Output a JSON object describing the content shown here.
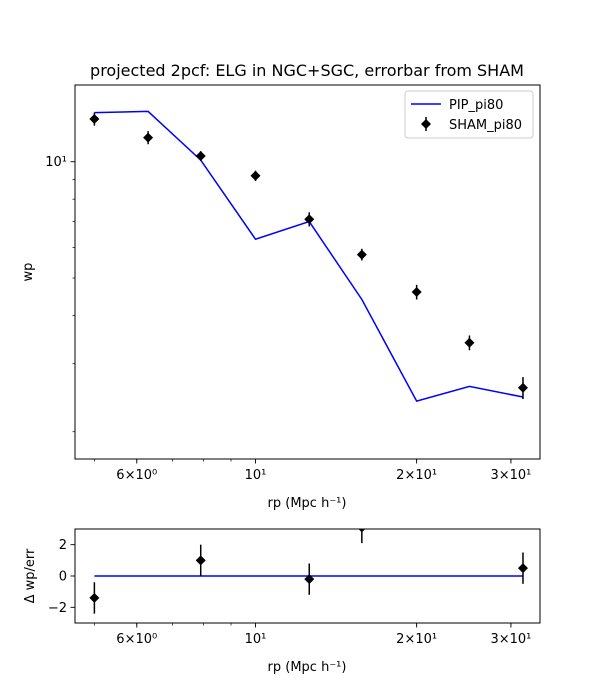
{
  "chart_data": [
    {
      "type": "line",
      "title": "projected 2pcf: ELG in NGC+SGC, errorbar from SHAM",
      "xlabel": "rp (Mpc h⁻¹)",
      "ylabel": "wp",
      "xscale": "log",
      "yscale": "log",
      "xlim": [
        4.6,
        34.0
      ],
      "ylim": [
        1.7,
        15.8
      ],
      "xticks": [
        {
          "value": 6,
          "label": "6×10⁰"
        },
        {
          "value": 10,
          "label": "10¹"
        },
        {
          "value": 20,
          "label": "2×10¹"
        },
        {
          "value": 30,
          "label": "3×10¹"
        }
      ],
      "yticks": [
        {
          "value": 10,
          "label": "10¹"
        }
      ],
      "legend_position": "top-right",
      "series": [
        {
          "name": "PIP_pi80",
          "kind": "line",
          "color": "#0000ff",
          "x": [
            5.0,
            6.3,
            7.9,
            10.0,
            12.6,
            15.8,
            20.0,
            25.1,
            31.6
          ],
          "y": [
            13.4,
            13.5,
            10.1,
            6.3,
            7.0,
            4.4,
            2.4,
            2.62,
            2.46
          ]
        },
        {
          "name": "SHAM_pi80",
          "kind": "errorbar",
          "color": "#000000",
          "x": [
            5.0,
            6.3,
            7.9,
            10.0,
            12.6,
            15.8,
            20.0,
            25.1,
            31.6
          ],
          "y": [
            12.9,
            11.55,
            10.35,
            9.2,
            7.1,
            5.75,
            4.6,
            3.4,
            2.6
          ],
          "err": [
            0.5,
            0.45,
            0.3,
            0.28,
            0.3,
            0.2,
            0.2,
            0.15,
            0.17
          ]
        }
      ]
    },
    {
      "type": "scatter",
      "title": "",
      "xlabel": "rp (Mpc h⁻¹)",
      "ylabel": "Δ wp/err",
      "xscale": "log",
      "yscale": "linear",
      "xlim": [
        4.6,
        34.0
      ],
      "ylim": [
        -3.0,
        3.0
      ],
      "xticks": [
        {
          "value": 6,
          "label": "6×10⁰"
        },
        {
          "value": 10,
          "label": "10¹"
        },
        {
          "value": 20,
          "label": "2×10¹"
        },
        {
          "value": 30,
          "label": "3×10¹"
        }
      ],
      "yticks": [
        {
          "value": 2,
          "label": "2"
        },
        {
          "value": 0,
          "label": "0"
        },
        {
          "value": -2,
          "label": "−2"
        }
      ],
      "series": [
        {
          "name": "zero line",
          "kind": "line",
          "color": "#0000ff",
          "x": [
            5.0,
            31.6
          ],
          "y": [
            0,
            0
          ]
        },
        {
          "name": "residuals",
          "kind": "errorbar",
          "color": "#000000",
          "x": [
            5.0,
            7.9,
            12.6,
            15.8,
            31.6
          ],
          "y": [
            -1.4,
            1.0,
            -0.2,
            3.1,
            0.5
          ],
          "err": [
            1.0,
            1.0,
            1.0,
            1.0,
            1.0
          ]
        }
      ]
    }
  ]
}
